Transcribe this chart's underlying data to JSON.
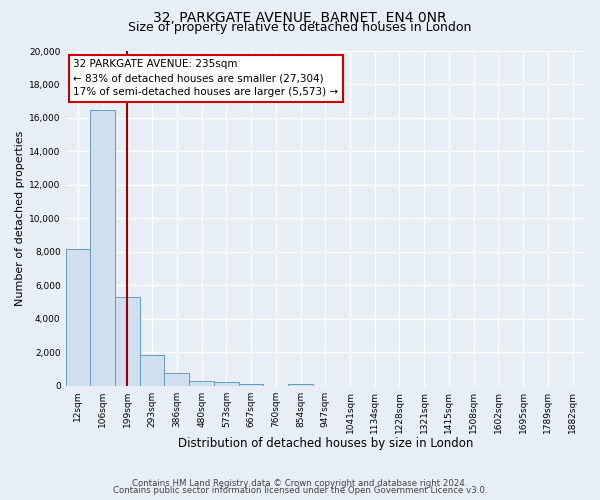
{
  "title": "32, PARKGATE AVENUE, BARNET, EN4 0NR",
  "subtitle": "Size of property relative to detached houses in London",
  "xlabel": "Distribution of detached houses by size in London",
  "ylabel": "Number of detached properties",
  "bin_labels": [
    "12sqm",
    "106sqm",
    "199sqm",
    "293sqm",
    "386sqm",
    "480sqm",
    "573sqm",
    "667sqm",
    "760sqm",
    "854sqm",
    "947sqm",
    "1041sqm",
    "1134sqm",
    "1228sqm",
    "1321sqm",
    "1415sqm",
    "1508sqm",
    "1602sqm",
    "1695sqm",
    "1789sqm",
    "1882sqm"
  ],
  "bin_values": [
    8200,
    16500,
    5300,
    1850,
    750,
    280,
    200,
    120,
    0,
    110,
    0,
    0,
    0,
    0,
    0,
    0,
    0,
    0,
    0,
    0,
    0
  ],
  "bar_color": "#d0e0ef",
  "bar_edge_color": "#6699bb",
  "vline_x_index": 2,
  "vline_color": "#990000",
  "ylim": [
    0,
    20000
  ],
  "yticks": [
    0,
    2000,
    4000,
    6000,
    8000,
    10000,
    12000,
    14000,
    16000,
    18000,
    20000
  ],
  "annotation_title": "32 PARKGATE AVENUE: 235sqm",
  "annotation_line1": "← 83% of detached houses are smaller (27,304)",
  "annotation_line2": "17% of semi-detached houses are larger (5,573) →",
  "annotation_box_color": "#ffffff",
  "annotation_box_edge": "#cc0000",
  "footnote1": "Contains HM Land Registry data © Crown copyright and database right 2024.",
  "footnote2": "Contains public sector information licensed under the Open Government Licence v3.0.",
  "bg_color": "#e8eef5",
  "plot_bg_color": "#e8eef5",
  "grid_color": "#ffffff",
  "title_fontsize": 10,
  "subtitle_fontsize": 9,
  "xlabel_fontsize": 8.5,
  "ylabel_fontsize": 8,
  "tick_fontsize": 6.5,
  "annot_fontsize": 7.5,
  "footnote_fontsize": 6.2
}
